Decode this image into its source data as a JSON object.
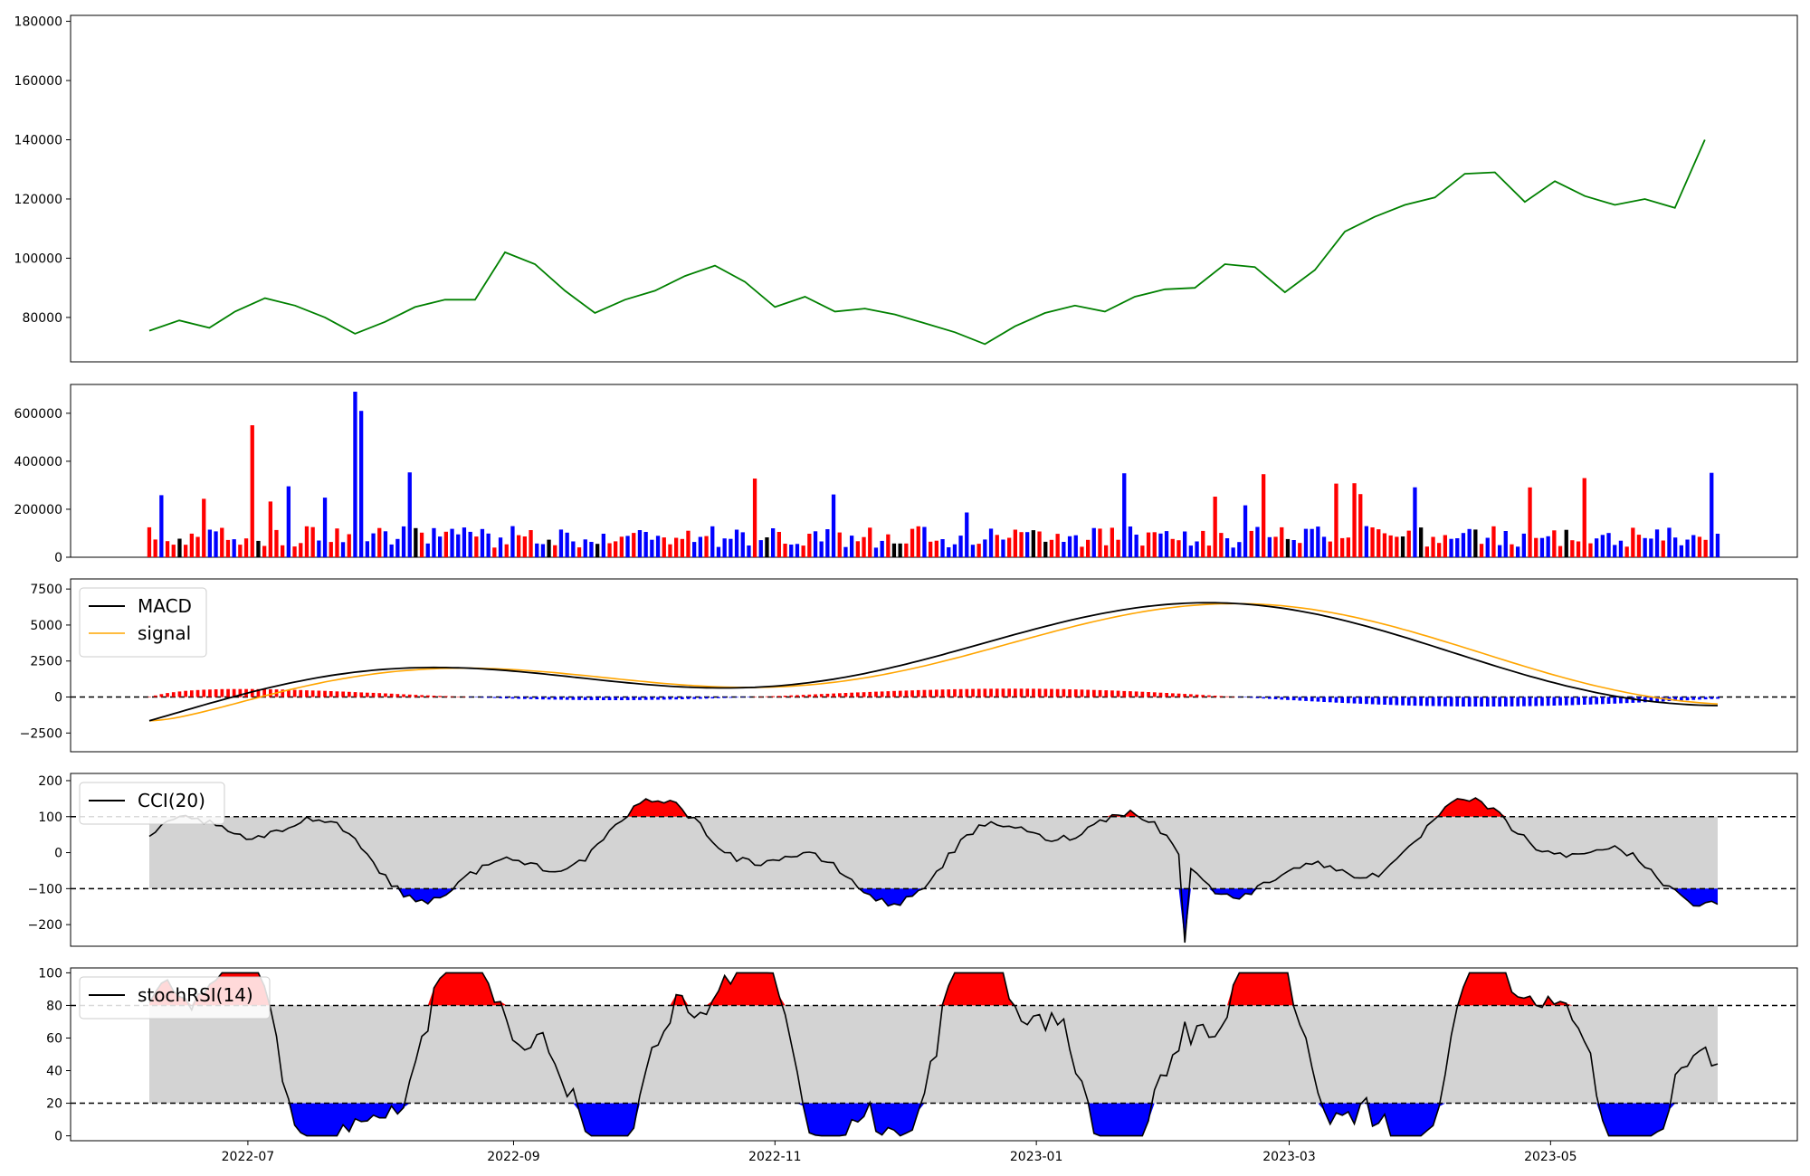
{
  "chart_data": [
    {
      "id": "price",
      "type": "line",
      "x_range": [
        "2022-06-08",
        "2023-06-09"
      ],
      "ylim": [
        65000,
        182000
      ],
      "yticks": [
        80000,
        100000,
        120000,
        140000,
        160000,
        180000
      ],
      "series": [
        {
          "color": "#008000",
          "points": [
            [
              "2022-06-08",
              75500
            ],
            [
              "2022-06-15",
              79000
            ],
            [
              "2022-06-22",
              76500
            ],
            [
              "2022-06-28",
              82000
            ],
            [
              "2022-07-05",
              86500
            ],
            [
              "2022-07-12",
              84000
            ],
            [
              "2022-07-19",
              80000
            ],
            [
              "2022-07-26",
              74500
            ],
            [
              "2022-08-02",
              78500
            ],
            [
              "2022-08-09",
              83500
            ],
            [
              "2022-08-16",
              86000
            ],
            [
              "2022-08-23",
              86000
            ],
            [
              "2022-08-30",
              102000
            ],
            [
              "2022-09-06",
              98000
            ],
            [
              "2022-09-13",
              89000
            ],
            [
              "2022-09-20",
              81500
            ],
            [
              "2022-09-27",
              86000
            ],
            [
              "2022-10-04",
              89000
            ],
            [
              "2022-10-11",
              94000
            ],
            [
              "2022-10-18",
              97500
            ],
            [
              "2022-10-25",
              92000
            ],
            [
              "2022-11-01",
              83500
            ],
            [
              "2022-11-08",
              87000
            ],
            [
              "2022-11-15",
              82000
            ],
            [
              "2022-11-22",
              83000
            ],
            [
              "2022-11-29",
              81000
            ],
            [
              "2022-12-06",
              78000
            ],
            [
              "2022-12-13",
              75000
            ],
            [
              "2022-12-20",
              71000
            ],
            [
              "2022-12-27",
              77000
            ],
            [
              "2023-01-03",
              81500
            ],
            [
              "2023-01-10",
              84000
            ],
            [
              "2023-01-17",
              82000
            ],
            [
              "2023-01-24",
              87000
            ],
            [
              "2023-01-31",
              89500
            ],
            [
              "2023-02-07",
              90000
            ],
            [
              "2023-02-14",
              98000
            ],
            [
              "2023-02-21",
              97000
            ],
            [
              "2023-02-28",
              88500
            ],
            [
              "2023-03-07",
              96000
            ],
            [
              "2023-03-14",
              109000
            ],
            [
              "2023-03-21",
              114000
            ],
            [
              "2023-03-28",
              118000
            ],
            [
              "2023-04-04",
              120500
            ],
            [
              "2023-04-11",
              128500
            ],
            [
              "2023-04-18",
              129000
            ],
            [
              "2023-04-25",
              119000
            ],
            [
              "2023-05-02",
              126000
            ],
            [
              "2023-05-09",
              121000
            ],
            [
              "2023-05-16",
              118000
            ],
            [
              "2023-05-23",
              120000
            ],
            [
              "2023-05-30",
              117000
            ],
            [
              "2023-06-06",
              140000
            ]
          ]
        }
      ]
    },
    {
      "id": "volume",
      "type": "bar",
      "ylim": [
        0,
        720000
      ],
      "yticks": [
        0,
        200000,
        400000,
        600000
      ]
    },
    {
      "id": "macd",
      "type": "line",
      "ylim": [
        -3800,
        8200
      ],
      "yticks": [
        -2500,
        0,
        2500,
        5000,
        7500
      ],
      "legend": [
        "MACD",
        "signal"
      ]
    },
    {
      "id": "cci",
      "type": "area",
      "ylim": [
        -260,
        220
      ],
      "yticks": [
        -200,
        -100,
        0,
        100,
        200
      ],
      "legend": [
        "CCI(20)"
      ]
    },
    {
      "id": "stochrsi",
      "type": "area",
      "ylim": [
        -3,
        103
      ],
      "yticks": [
        0,
        20,
        40,
        60,
        80,
        100
      ],
      "legend": [
        "stochRSI(14)"
      ],
      "xticks": [
        "2022-07",
        "2022-09",
        "2022-11",
        "2023-01",
        "2023-03",
        "2023-05"
      ]
    }
  ],
  "colors": {
    "price": "#008000",
    "up": "#ff0000",
    "down": "#0000ff",
    "neutral": "#000000",
    "macd": "#000000",
    "signal": "#ffa500",
    "band": "#d3d3d3"
  }
}
